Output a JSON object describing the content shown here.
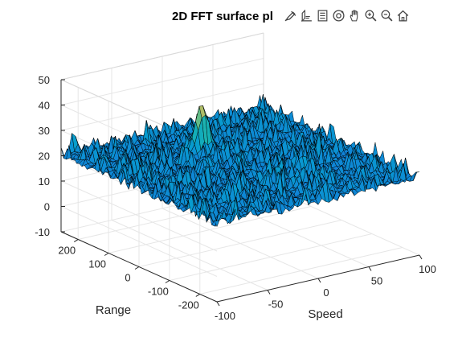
{
  "figure": {
    "background": "#ffffff"
  },
  "toolbar": {
    "icons": [
      "brush-icon",
      "data-tips-icon",
      "legend-icon",
      "rotate-3d-icon",
      "pan-hand-icon",
      "zoom-in-icon",
      "zoom-out-icon",
      "home-icon"
    ]
  },
  "chart_data": {
    "type": "surface",
    "title": "2D FFT surface pl",
    "xlabel": "Speed",
    "ylabel": "Range",
    "zlabel": "",
    "xlim": [
      -100,
      100
    ],
    "ylim": [
      -256,
      256
    ],
    "zlim": [
      -10,
      50
    ],
    "x_ticks": [
      -100,
      -50,
      0,
      50,
      100
    ],
    "y_ticks": [
      -200,
      -100,
      0,
      100,
      200
    ],
    "z_ticks": [
      -10,
      0,
      10,
      20,
      30,
      40,
      50
    ],
    "grid": true,
    "colormap": "parula",
    "mesh_edge_color": "#000000",
    "noise_floor_level": 20,
    "noise_floor_spread": 6,
    "peak": {
      "speed": -5,
      "range": 110,
      "value": 40
    }
  }
}
